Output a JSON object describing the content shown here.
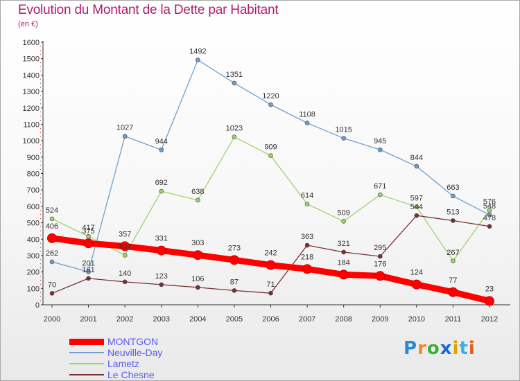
{
  "title": "Evolution du Montant de la Dette par Habitant",
  "subtitle": "(en €)",
  "brand": {
    "text": "Proxiti",
    "letter_colors": [
      "#2a8ad8",
      "#f08a20",
      "#3ab03a",
      "#1c6ad0",
      "#e0a000",
      "#40b0e0",
      "#e06020"
    ]
  },
  "chart_data": {
    "type": "line",
    "x": [
      "2000",
      "2001",
      "2002",
      "2003",
      "2004",
      "2005",
      "2006",
      "2007",
      "2008",
      "2009",
      "2010",
      "2011",
      "2012"
    ],
    "yticks": [
      "0",
      "100",
      "200",
      "300",
      "400",
      "500",
      "600",
      "700",
      "800",
      "900",
      "1000",
      "1100",
      "1200",
      "1300",
      "1400",
      "1500",
      "1600"
    ],
    "ylim": [
      0,
      1600
    ],
    "grid": false,
    "legend_position": "bottom-left",
    "series": [
      {
        "name": "MONTGON",
        "color": "#ff0000",
        "values": [
          406,
          375,
          357,
          331,
          303,
          273,
          242,
          218,
          184,
          176,
          124,
          77,
          23
        ]
      },
      {
        "name": "Neuville-Day",
        "color": "#6f9fcf",
        "values": [
          262,
          201,
          1027,
          944,
          1492,
          1351,
          1220,
          1108,
          1015,
          945,
          844,
          663,
          548
        ]
      },
      {
        "name": "Lametz",
        "color": "#9ad46a",
        "values": [
          524,
          417,
          302,
          692,
          638,
          1023,
          909,
          614,
          509,
          671,
          597,
          267,
          576
        ]
      },
      {
        "name": "Le Chesne",
        "color": "#7a2f34",
        "values": [
          70,
          161,
          140,
          123,
          106,
          87,
          71,
          363,
          321,
          295,
          544,
          513,
          478
        ]
      }
    ]
  }
}
